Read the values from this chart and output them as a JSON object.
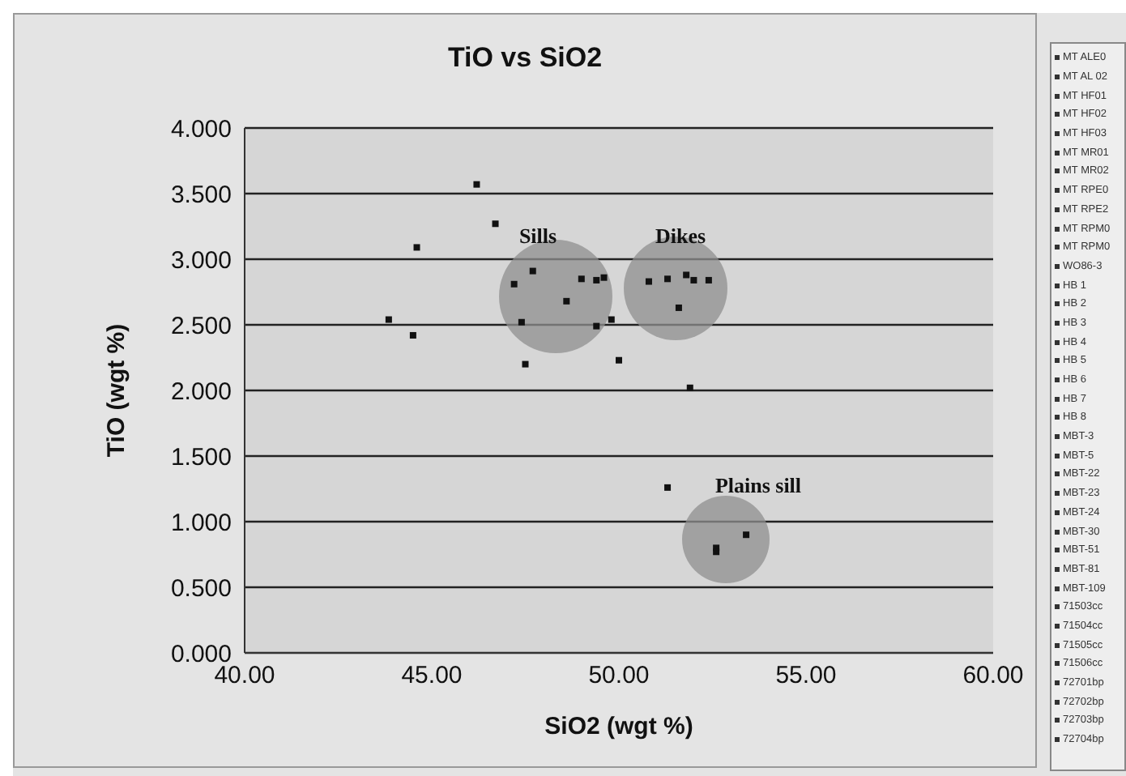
{
  "chart_data": {
    "type": "scatter",
    "title": "TiO vs SiO2",
    "xlabel": "SiO2 (wgt %)",
    "ylabel": "TiO (wgt %)",
    "x": [
      46.2,
      46.7,
      44.6,
      43.85,
      44.5,
      47.5,
      47.2,
      47.7,
      47.4,
      49.0,
      49.4,
      49.6,
      48.6,
      49.4,
      49.8,
      50.0,
      51.9,
      50.8,
      51.3,
      51.8,
      52.0,
      52.4,
      51.6,
      51.3,
      52.6,
      52.6,
      53.4
    ],
    "series": [
      {
        "color": "#111111",
        "values": [
          3.57,
          3.27,
          3.09,
          2.54,
          2.42,
          2.2,
          2.81,
          2.91,
          2.52,
          2.85,
          2.84,
          2.86,
          2.68,
          2.49,
          2.54,
          2.23,
          2.02,
          2.83,
          2.85,
          2.88,
          2.84,
          2.84,
          2.63,
          1.26,
          0.8,
          0.77,
          0.9
        ]
      }
    ],
    "xlim": [
      40,
      60
    ],
    "xticks": [
      {
        "value": 40,
        "label": "40.00"
      },
      {
        "value": 45,
        "label": "45.00"
      },
      {
        "value": 50,
        "label": "50.00"
      },
      {
        "value": 55,
        "label": "55.00"
      },
      {
        "value": 60,
        "label": "60.00"
      }
    ],
    "ylim": [
      0,
      4
    ],
    "yticks": [
      {
        "value": 0,
        "label": "0.000"
      },
      {
        "value": 0.5,
        "label": "0.500"
      },
      {
        "value": 1,
        "label": "1.000"
      },
      {
        "value": 1.5,
        "label": "1.500"
      },
      {
        "value": 2,
        "label": "2.000"
      },
      {
        "value": 2.5,
        "label": "2.500"
      },
      {
        "value": 3,
        "label": "3.000"
      },
      {
        "value": 3.5,
        "label": "3.500"
      },
      {
        "value": 4,
        "label": "4.000"
      }
    ],
    "grid": "y",
    "marker": "square",
    "legend": false,
    "annotations": [
      "Sills",
      "Dikes",
      "Plains sill",
      "MT ALE0",
      "MT AL 02",
      "MT HF01",
      "MT HF02",
      "MT HF03",
      "MT MR01",
      "MT MR02",
      "MT RPE0",
      "MT RPE2",
      "MT RPM0",
      "MT RPM0",
      "WO86-3",
      "HB 1",
      "HB 2",
      "HB 3",
      "HB 4",
      "HB 5",
      "HB 6",
      "HB 7",
      "HB 8",
      "MBT-3",
      "MBT-5",
      "MBT-22",
      "MBT-23",
      "MBT-24",
      "MBT-30",
      "MBT-51",
      "MBT-81",
      "MBT-109",
      "71503cc",
      "71504cc",
      "71505cc",
      "71506cc",
      "72701bp",
      "72702bp",
      "72703bp",
      "72704bp"
    ]
  }
}
